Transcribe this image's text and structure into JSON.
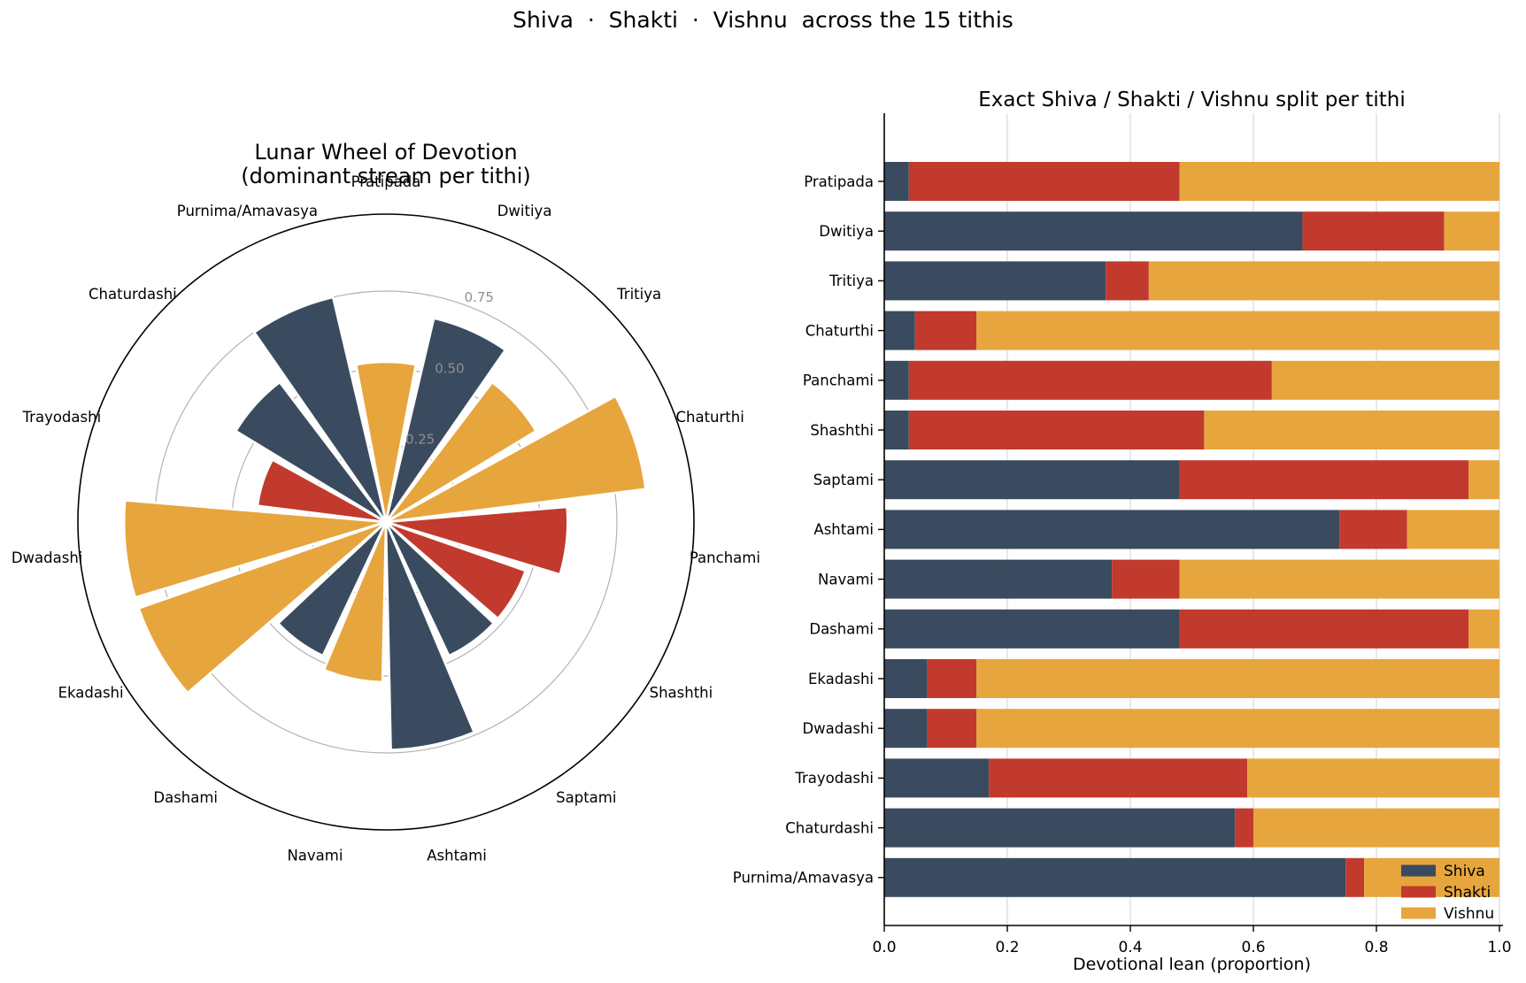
{
  "suptitle": "Shiva  ·  Shakti  ·  Vishnu  across the 15 tithis",
  "colors": {
    "shiva": "#3A4B5F",
    "shakti": "#C13A2D",
    "vishnu": "#E7A53D"
  },
  "chart_data": [
    {
      "type": "polar_rose",
      "title": "Lunar Wheel of Devotion",
      "subtitle": "(dominant stream per tithi)",
      "categories": [
        "Pratipada",
        "Dwitiya",
        "Tritiya",
        "Chaturthi",
        "Panchami",
        "Shashthi",
        "Saptami",
        "Ashtami",
        "Navami",
        "Dashami",
        "Ekadashi",
        "Dwadashi",
        "Trayodashi",
        "Chaturdashi",
        "Purnima/Amavasya"
      ],
      "r_ticks": [
        "0.25",
        "0.50",
        "0.75"
      ],
      "r_tick_values": [
        0.25,
        0.5,
        0.75
      ],
      "r_max": 1.0,
      "direction": "clockwise-from-top",
      "grid": "circles-only",
      "dominant": [
        {
          "tithi": "Pratipada",
          "stream": "Vishnu",
          "value": 0.52
        },
        {
          "tithi": "Dwitiya",
          "stream": "Shiva",
          "value": 0.68
        },
        {
          "tithi": "Tritiya",
          "stream": "Vishnu",
          "value": 0.57
        },
        {
          "tithi": "Chaturthi",
          "stream": "Vishnu",
          "value": 0.85
        },
        {
          "tithi": "Panchami",
          "stream": "Shakti",
          "value": 0.59
        },
        {
          "tithi": "Shashthi",
          "stream": "Shakti",
          "value": 0.48
        },
        {
          "tithi": "Saptami",
          "stream": "Shiva",
          "value": 0.48
        },
        {
          "tithi": "Ashtami",
          "stream": "Shiva",
          "value": 0.74
        },
        {
          "tithi": "Navami",
          "stream": "Vishnu",
          "value": 0.52
        },
        {
          "tithi": "Dashami",
          "stream": "Shiva",
          "value": 0.48
        },
        {
          "tithi": "Ekadashi",
          "stream": "Vishnu",
          "value": 0.85
        },
        {
          "tithi": "Dwadashi",
          "stream": "Vishnu",
          "value": 0.85
        },
        {
          "tithi": "Trayodashi",
          "stream": "Shakti",
          "value": 0.42
        },
        {
          "tithi": "Chaturdashi",
          "stream": "Shiva",
          "value": 0.57
        },
        {
          "tithi": "Purnima/Amavasya",
          "stream": "Shiva",
          "value": 0.75
        }
      ]
    },
    {
      "type": "stacked_bar_horizontal",
      "title": "Exact Shiva / Shakti / Vishnu split per tithi",
      "xlabel": "Devotional lean (proportion)",
      "xlim": [
        0.0,
        1.0
      ],
      "x_ticks": [
        "0.0",
        "0.2",
        "0.4",
        "0.6",
        "0.8",
        "1.0"
      ],
      "x_tick_values": [
        0.0,
        0.2,
        0.4,
        0.6,
        0.8,
        1.0
      ],
      "grid": "vertical-light",
      "legend": {
        "position": "lower-right",
        "entries": [
          "Shiva",
          "Shakti",
          "Vishnu"
        ]
      },
      "categories": [
        "Pratipada",
        "Dwitiya",
        "Tritiya",
        "Chaturthi",
        "Panchami",
        "Shashthi",
        "Saptami",
        "Ashtami",
        "Navami",
        "Dashami",
        "Ekadashi",
        "Dwadashi",
        "Trayodashi",
        "Chaturdashi",
        "Purnima/Amavasya"
      ],
      "series": [
        {
          "name": "Shiva",
          "values": [
            0.04,
            0.68,
            0.36,
            0.05,
            0.04,
            0.04,
            0.48,
            0.74,
            0.37,
            0.48,
            0.07,
            0.07,
            0.17,
            0.57,
            0.75
          ]
        },
        {
          "name": "Shakti",
          "values": [
            0.44,
            0.23,
            0.07,
            0.1,
            0.59,
            0.48,
            0.47,
            0.11,
            0.11,
            0.47,
            0.08,
            0.08,
            0.42,
            0.03,
            0.03
          ]
        },
        {
          "name": "Vishnu",
          "values": [
            0.52,
            0.09,
            0.57,
            0.85,
            0.37,
            0.48,
            0.05,
            0.15,
            0.52,
            0.05,
            0.85,
            0.85,
            0.41,
            0.4,
            0.22
          ]
        }
      ]
    }
  ]
}
